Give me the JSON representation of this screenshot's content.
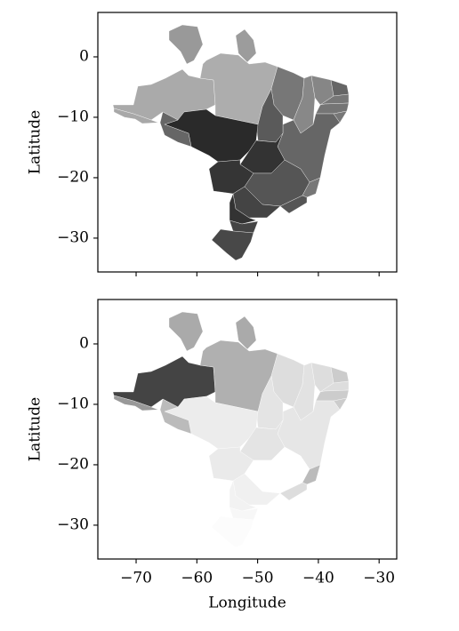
{
  "chart_data": [
    {
      "type": "map",
      "ylabel": "Latitude",
      "xlim": [
        -76.3,
        -27.1
      ],
      "ylim": [
        -35.6,
        7.35
      ],
      "xticks": [
        -70,
        -60,
        -50,
        -40,
        -30
      ],
      "yticks": [
        {
          "value": 0,
          "label": "0"
        },
        {
          "value": -10,
          "label": "−10"
        },
        {
          "value": -20,
          "label": "−20"
        },
        {
          "value": -30,
          "label": "−30"
        }
      ]
    },
    {
      "type": "map",
      "ylabel": "Latitude",
      "xlabel": "Longitude",
      "xlim": [
        -76.3,
        -27.1
      ],
      "ylim": [
        -35.6,
        7.35
      ],
      "xticks": [
        {
          "value": -70,
          "label": "−70"
        },
        {
          "value": -60,
          "label": "−60"
        },
        {
          "value": -50,
          "label": "−50"
        },
        {
          "value": -40,
          "label": "−40"
        },
        {
          "value": -30,
          "label": "−30"
        }
      ],
      "yticks": [
        {
          "value": 0,
          "label": "0"
        },
        {
          "value": -10,
          "label": "−10"
        },
        {
          "value": -20,
          "label": "−20"
        },
        {
          "value": -30,
          "label": "−30"
        }
      ]
    }
  ]
}
